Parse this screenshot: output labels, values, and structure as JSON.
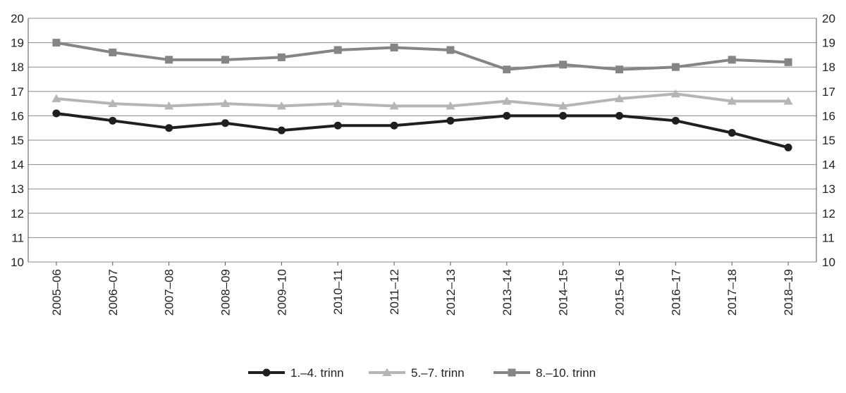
{
  "chart_data": {
    "type": "line",
    "categories": [
      "2005–06",
      "2006–07",
      "2007–08",
      "2008–09",
      "2009–10",
      "2010–11",
      "2011–12",
      "2012–13",
      "2013–14",
      "2014–15",
      "2015–16",
      "2016–17",
      "2017–18",
      "2018–19"
    ],
    "ylim": [
      10,
      20
    ],
    "yticks": [
      10,
      11,
      12,
      13,
      14,
      15,
      16,
      17,
      18,
      19,
      20
    ],
    "ytick_labels": [
      "10",
      "11",
      "12",
      "13",
      "14",
      "15",
      "16",
      "17",
      "18",
      "19",
      "20"
    ],
    "grid": true,
    "dual_y_axis": true,
    "legend_position": "bottom",
    "series": [
      {
        "name": "1.–4. trinn",
        "color": "#1f1f1f",
        "marker": "circle",
        "values": [
          16.1,
          15.8,
          15.5,
          15.7,
          15.4,
          15.6,
          15.6,
          15.8,
          16.0,
          16.0,
          16.0,
          15.8,
          15.3,
          14.7
        ]
      },
      {
        "name": "5.–7. trinn",
        "color": "#b5b5b5",
        "marker": "triangle",
        "values": [
          16.7,
          16.5,
          16.4,
          16.5,
          16.4,
          16.5,
          16.4,
          16.4,
          16.6,
          16.4,
          16.7,
          16.9,
          16.6,
          16.6
        ]
      },
      {
        "name": "8.–10. trinn",
        "color": "#858585",
        "marker": "square",
        "values": [
          19.0,
          18.6,
          18.3,
          18.3,
          18.4,
          18.7,
          18.8,
          18.7,
          17.9,
          18.1,
          17.9,
          18.0,
          18.3,
          18.2
        ]
      }
    ]
  }
}
